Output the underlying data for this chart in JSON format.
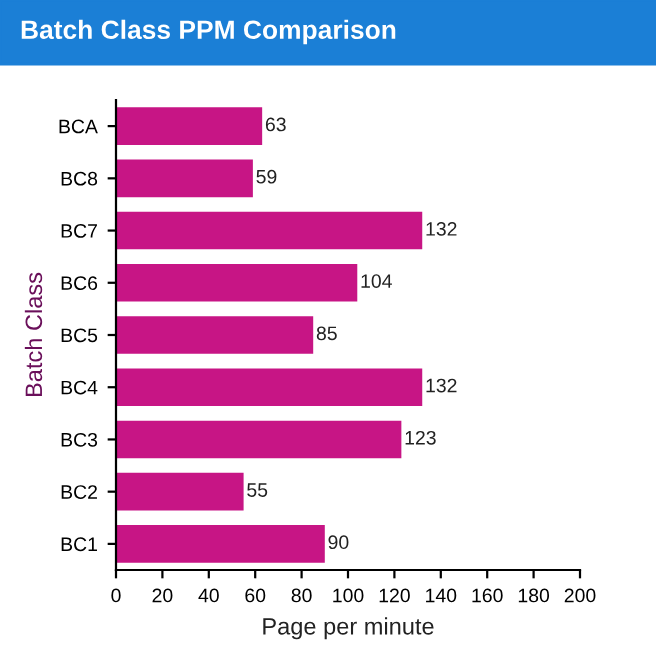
{
  "chart_data": {
    "type": "bar",
    "orientation": "horizontal",
    "title": "Batch Class PPM Comparison",
    "xlabel": "Page per minute",
    "ylabel": "Batch Class",
    "categories": [
      "BCA",
      "BC8",
      "BC7",
      "BC6",
      "BC5",
      "BC4",
      "BC3",
      "BC2",
      "BC1"
    ],
    "values": [
      63,
      59,
      132,
      104,
      85,
      132,
      123,
      55,
      90
    ],
    "color": "#c71585",
    "xlim": [
      0,
      200
    ],
    "xticks": [
      0,
      20,
      40,
      60,
      80,
      100,
      120,
      140,
      160,
      180,
      200
    ],
    "data_labels": true,
    "grid": false,
    "legend": false
  }
}
